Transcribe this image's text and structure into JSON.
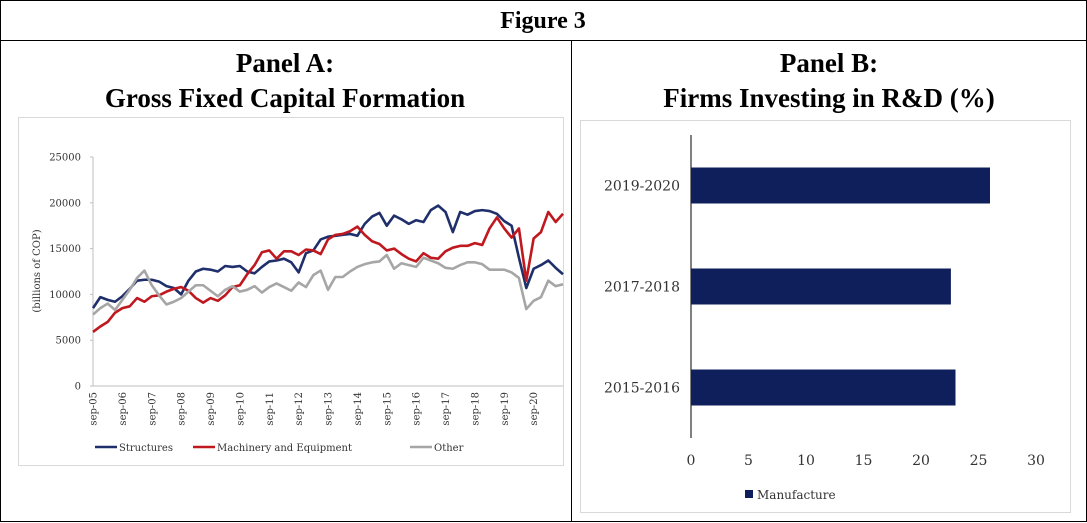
{
  "figure_title": "Figure 3",
  "chart_data": [
    {
      "type": "line",
      "panel": "Panel A:",
      "title": "Gross Fixed Capital Formation",
      "y_label": "(billions of COP)",
      "categories": [
        "sep-05",
        null,
        null,
        null,
        "sep-06",
        null,
        null,
        null,
        "sep-07",
        null,
        null,
        null,
        "sep-08",
        null,
        null,
        null,
        "sep-09",
        null,
        null,
        null,
        "sep-10",
        null,
        null,
        null,
        "sep-11",
        null,
        null,
        null,
        "sep-12",
        null,
        null,
        null,
        "sep-13",
        null,
        null,
        null,
        "sep-14",
        null,
        null,
        null,
        "sep-15",
        null,
        null,
        null,
        "sep-16",
        null,
        null,
        null,
        "sep-17",
        null,
        null,
        null,
        "sep-18",
        null,
        null,
        null,
        "sep-19",
        null,
        null,
        null,
        "sep-20",
        null,
        null,
        null,
        null
      ],
      "ylim": [
        0,
        25000
      ],
      "yticks": [
        0,
        5000,
        10000,
        15000,
        20000,
        25000
      ],
      "series": [
        {
          "name": "Structures",
          "color": "#1f2f6b",
          "values": [
            8500,
            9700,
            9400,
            9200,
            9800,
            10600,
            11500,
            11600,
            11600,
            11400,
            10900,
            10700,
            10000,
            11500,
            12500,
            12800,
            12700,
            12500,
            13100,
            13000,
            13100,
            12500,
            12300,
            13000,
            13600,
            13700,
            13900,
            13500,
            12400,
            14500,
            14800,
            16000,
            16300,
            16400,
            16500,
            16600,
            16400,
            17700,
            18500,
            18900,
            17500,
            18600,
            18200,
            17700,
            18100,
            17900,
            19200,
            19700,
            19000,
            16800,
            19000,
            18700,
            19100,
            19200,
            19100,
            18800,
            18000,
            17500,
            14000,
            10700,
            12800,
            13200,
            13700,
            12900,
            12200
          ]
        },
        {
          "name": "Machinery and Equipment",
          "color": "#c0181f",
          "values": [
            5900,
            6500,
            7000,
            8000,
            8500,
            8700,
            9600,
            9200,
            9800,
            9900,
            10300,
            10600,
            10800,
            10400,
            9600,
            9100,
            9600,
            9300,
            9900,
            10800,
            11000,
            12200,
            13200,
            14600,
            14800,
            13900,
            14700,
            14700,
            14300,
            14900,
            14800,
            14400,
            16000,
            16500,
            16600,
            16900,
            17400,
            16500,
            15800,
            15500,
            14800,
            15000,
            14400,
            13900,
            13600,
            14500,
            14000,
            13900,
            14700,
            15100,
            15300,
            15300,
            15600,
            15400,
            17200,
            18400,
            17200,
            16200,
            17200,
            11500,
            16100,
            16800,
            19000,
            17900,
            18800
          ]
        },
        {
          "name": "Other",
          "color": "#a6a6a6",
          "values": [
            7800,
            8500,
            9000,
            8300,
            9400,
            10500,
            11800,
            12600,
            11000,
            9900,
            8900,
            9200,
            9600,
            10300,
            11000,
            11000,
            10400,
            9800,
            10500,
            10900,
            10300,
            10500,
            10900,
            10200,
            10800,
            11200,
            10800,
            10400,
            11300,
            10800,
            12100,
            12600,
            10500,
            11900,
            11900,
            12500,
            13000,
            13300,
            13500,
            13600,
            14300,
            12800,
            13400,
            13200,
            13000,
            14000,
            13700,
            13400,
            12900,
            12800,
            13200,
            13500,
            13500,
            13300,
            12700,
            12700,
            12700,
            12400,
            11800,
            8400,
            9300,
            9700,
            11500,
            10900,
            11100
          ]
        }
      ]
    },
    {
      "type": "barh",
      "panel": "Panel B:",
      "title": "Firms Investing in R&D (%)",
      "categories": [
        "2019-2020",
        "2017-2018",
        "2015-2016"
      ],
      "xlim": [
        0,
        30
      ],
      "xticks": [
        0,
        5,
        10,
        15,
        20,
        25,
        30
      ],
      "series": [
        {
          "name": "Manufacture",
          "color": "#0f1f5c",
          "values": [
            26,
            22.6,
            23
          ]
        }
      ]
    }
  ]
}
